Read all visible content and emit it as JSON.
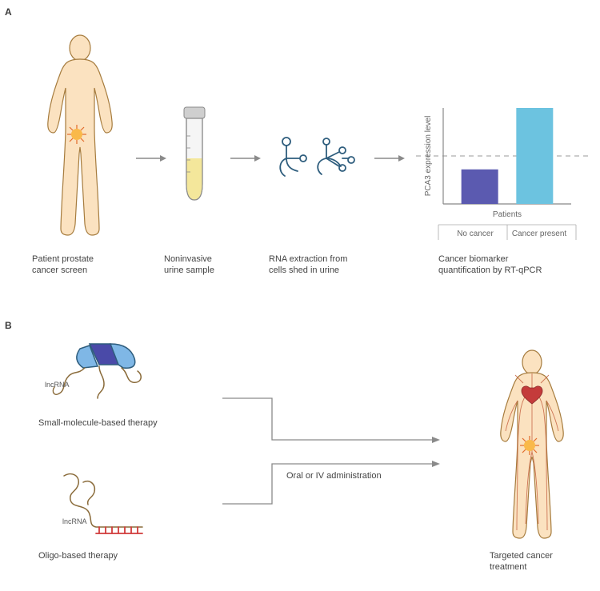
{
  "panelA": {
    "label": "A",
    "steps": [
      {
        "caption": "Patient prostate\ncancer screen"
      },
      {
        "caption": "Noninvasive\nurine sample"
      },
      {
        "caption": "RNA extraction from\ncells shed in urine"
      },
      {
        "caption": "Cancer biomarker\nquantification by RT-qPCR"
      }
    ],
    "chart": {
      "y_label": "PCA3 expression level",
      "x_label": "Patients",
      "categories": [
        "No cancer",
        "Cancer present"
      ],
      "values": [
        0.36,
        1.0
      ],
      "threshold": 0.5,
      "bar_colors": [
        "#5b5ab0",
        "#6cc3e0"
      ],
      "axis_color": "#888888",
      "threshold_color": "#bbbbbb",
      "tick_color": "#aaaaaa",
      "text_color": "#666666"
    },
    "human_colors": {
      "skin": "#fbe2c0",
      "outline": "#a67c3e",
      "tumor_fill": "#f9b94a",
      "tumor_spike": "#e26b2a"
    },
    "tube_colors": {
      "body": "#dcdcdc",
      "cap": "#cfcfcf",
      "fluid": "#f4e79b",
      "outline": "#8a8a8a"
    },
    "rna_color": "#2e5d7d",
    "arrow_color": "#8a8a8a"
  },
  "panelB": {
    "label": "B",
    "lncRNA_label": "lncRNA",
    "therapy1_caption": "Small-molecule-based therapy",
    "therapy2_caption": "Oligo-based therapy",
    "admin_label": "Oral or IV administration",
    "target_caption": "Targeted cancer\ntreatment",
    "protein_colors": {
      "dark": "#4a4aa8",
      "light": "#7fb7e6",
      "outline": "#2e5d7d"
    },
    "rna_color": "#8a6b3a",
    "oligo_color": "#d13b3b",
    "human_colors": {
      "skin": "#fbe2c0",
      "outline": "#a67c3e",
      "vessel": "#c96a4a",
      "tumor_fill": "#f9b94a",
      "tumor_spike": "#e26b2a",
      "heart": "#c43b3b"
    },
    "bracket_color": "#8a8a8a"
  }
}
